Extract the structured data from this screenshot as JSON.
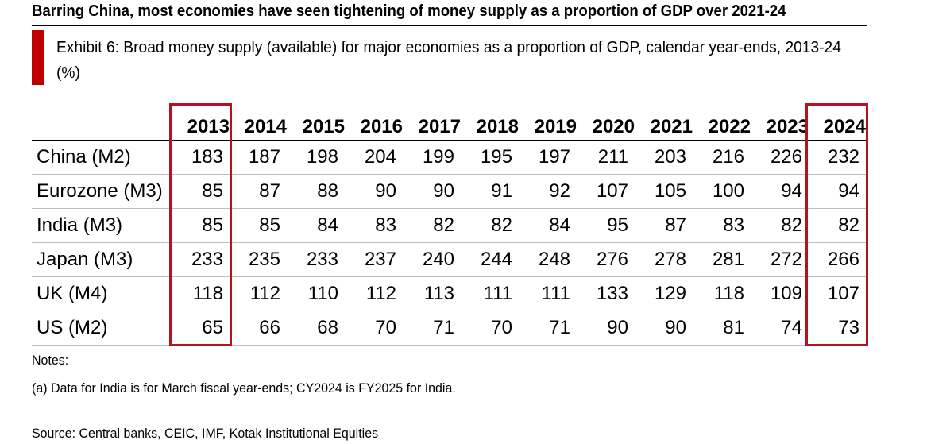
{
  "headline": "Barring China, most economies have seen tightening of money supply as a proportion of GDP over 2021-24",
  "exhibit": {
    "title": "Exhibit 6: Broad money supply (available) for major economies as a proportion of GDP, calendar year-ends, 2013-24 (%)"
  },
  "colors": {
    "accent": "#c00000",
    "highlight_border": "#b3121f"
  },
  "chart_data": {
    "type": "table",
    "title": "Exhibit 6: Broad money supply (available) for major economies as a proportion of GDP, calendar year-ends, 2013-24 (%)",
    "columns": [
      "2013",
      "2014",
      "2015",
      "2016",
      "2017",
      "2018",
      "2019",
      "2020",
      "2021",
      "2022",
      "2023",
      "2024"
    ],
    "highlighted_columns": [
      "2013",
      "2024"
    ],
    "rows": [
      {
        "label": "China (M2)",
        "values": [
          183,
          187,
          198,
          204,
          199,
          195,
          197,
          211,
          203,
          216,
          226,
          232
        ]
      },
      {
        "label": "Eurozone (M3)",
        "values": [
          85,
          87,
          88,
          90,
          90,
          91,
          92,
          107,
          105,
          100,
          94,
          94
        ]
      },
      {
        "label": "India (M3)",
        "values": [
          85,
          85,
          84,
          83,
          82,
          82,
          84,
          95,
          87,
          83,
          82,
          82
        ]
      },
      {
        "label": "Japan (M3)",
        "values": [
          233,
          235,
          233,
          237,
          240,
          244,
          248,
          276,
          278,
          281,
          272,
          266
        ]
      },
      {
        "label": "UK (M4)",
        "values": [
          118,
          112,
          110,
          112,
          113,
          111,
          111,
          133,
          129,
          118,
          109,
          107
        ]
      },
      {
        "label": "US (M2)",
        "values": [
          65,
          66,
          68,
          70,
          71,
          70,
          71,
          90,
          90,
          81,
          74,
          73
        ]
      }
    ]
  },
  "notes": {
    "heading": "Notes:",
    "items": [
      "(a) Data for India is for March fiscal year-ends; CY2024 is FY2025 for India."
    ]
  },
  "source": "Source: Central banks, CEIC, IMF, Kotak Institutional Equities"
}
